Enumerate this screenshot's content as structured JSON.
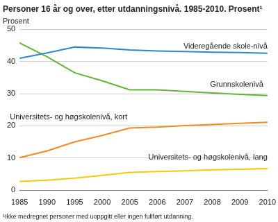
{
  "chart_data": {
    "type": "line",
    "title": "Personer 16 år og over, etter utdanningsnivå. 1985-2010. Prosent¹",
    "y_label": "Prosent",
    "footnote": "¹Ikke medregnet personer med uoppgitt eller ingen fullført utdanning.",
    "categories": [
      "1985",
      "1990",
      "1995",
      "2000",
      "2005",
      "2006",
      "2007",
      "2008",
      "2009",
      "2010"
    ],
    "series": [
      {
        "name": "Videregående skole-nivå",
        "color": "#2e86c8",
        "values": [
          41.0,
          42.7,
          44.5,
          44.2,
          43.6,
          43.3,
          43.1,
          42.9,
          42.8,
          42.6
        ]
      },
      {
        "name": "Grunnskolenivå",
        "color": "#61b33a",
        "values": [
          45.8,
          41.5,
          36.5,
          34.0,
          31.2,
          31.2,
          30.7,
          30.2,
          29.8,
          29.4
        ]
      },
      {
        "name": "Universitets- og høgskolenivå, kort",
        "color": "#f08a24",
        "values": [
          10.1,
          12.2,
          15.0,
          17.0,
          19.3,
          19.6,
          20.1,
          20.4,
          20.8,
          21.1
        ]
      },
      {
        "name": "Universitets- og høgskolenivå, lang",
        "color": "#f2cc0c",
        "values": [
          2.7,
          3.1,
          3.7,
          4.6,
          5.5,
          5.8,
          6.0,
          6.3,
          6.5,
          6.7
        ]
      }
    ],
    "ylim": [
      0,
      50
    ],
    "yticks": [
      0,
      10,
      20,
      30,
      40,
      50
    ],
    "grid": true
  }
}
